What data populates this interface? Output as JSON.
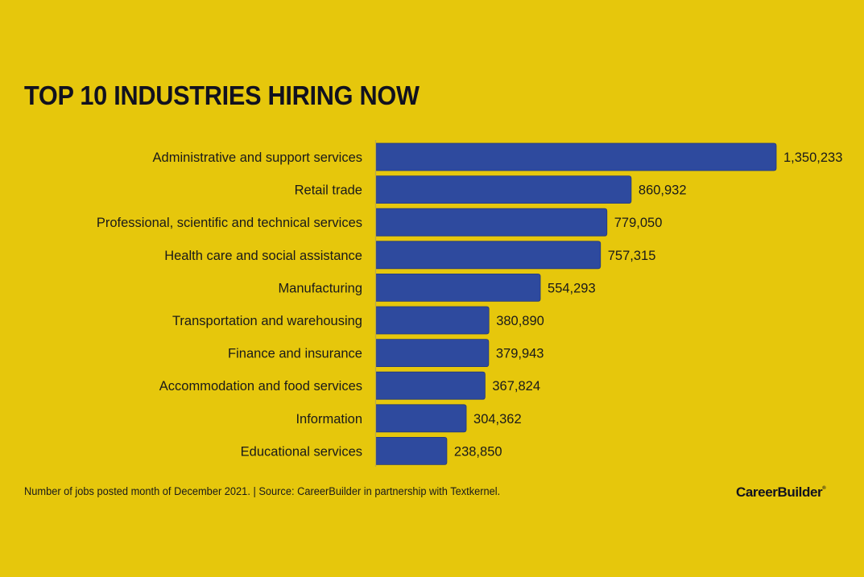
{
  "chart_data": {
    "type": "bar",
    "orientation": "horizontal",
    "title": "TOP 10 INDUSTRIES HIRING NOW",
    "xlabel": "",
    "ylabel": "",
    "categories": [
      "Administrative and support services",
      "Retail trade",
      "Professional, scientific and technical services",
      "Health care and social assistance",
      "Manufacturing",
      "Transportation and warehousing",
      "Finance and insurance",
      "Accommodation and food services",
      "Information",
      "Educational services"
    ],
    "values": [
      1350233,
      860932,
      779050,
      757315,
      554293,
      380890,
      379943,
      367824,
      304362,
      238850
    ],
    "value_labels": [
      "1,350,233",
      "860,932",
      "779,050",
      "757,315",
      "554,293",
      "380,890",
      "379,943",
      "367,824",
      "304,362",
      "238,850"
    ],
    "xlim": [
      0,
      1350233
    ],
    "grid": false,
    "legend": "none",
    "bar_color": "#2e4a9e"
  },
  "footnote": "Number of jobs posted month of December 2021. | Source:  CareerBuilder in partnership with Textkernel.",
  "logo": {
    "text": "CareerBuilder",
    "mark": "®"
  },
  "colors": {
    "background": "#e6c70c",
    "bar": "#2e4a9e",
    "text": "#14141e"
  }
}
